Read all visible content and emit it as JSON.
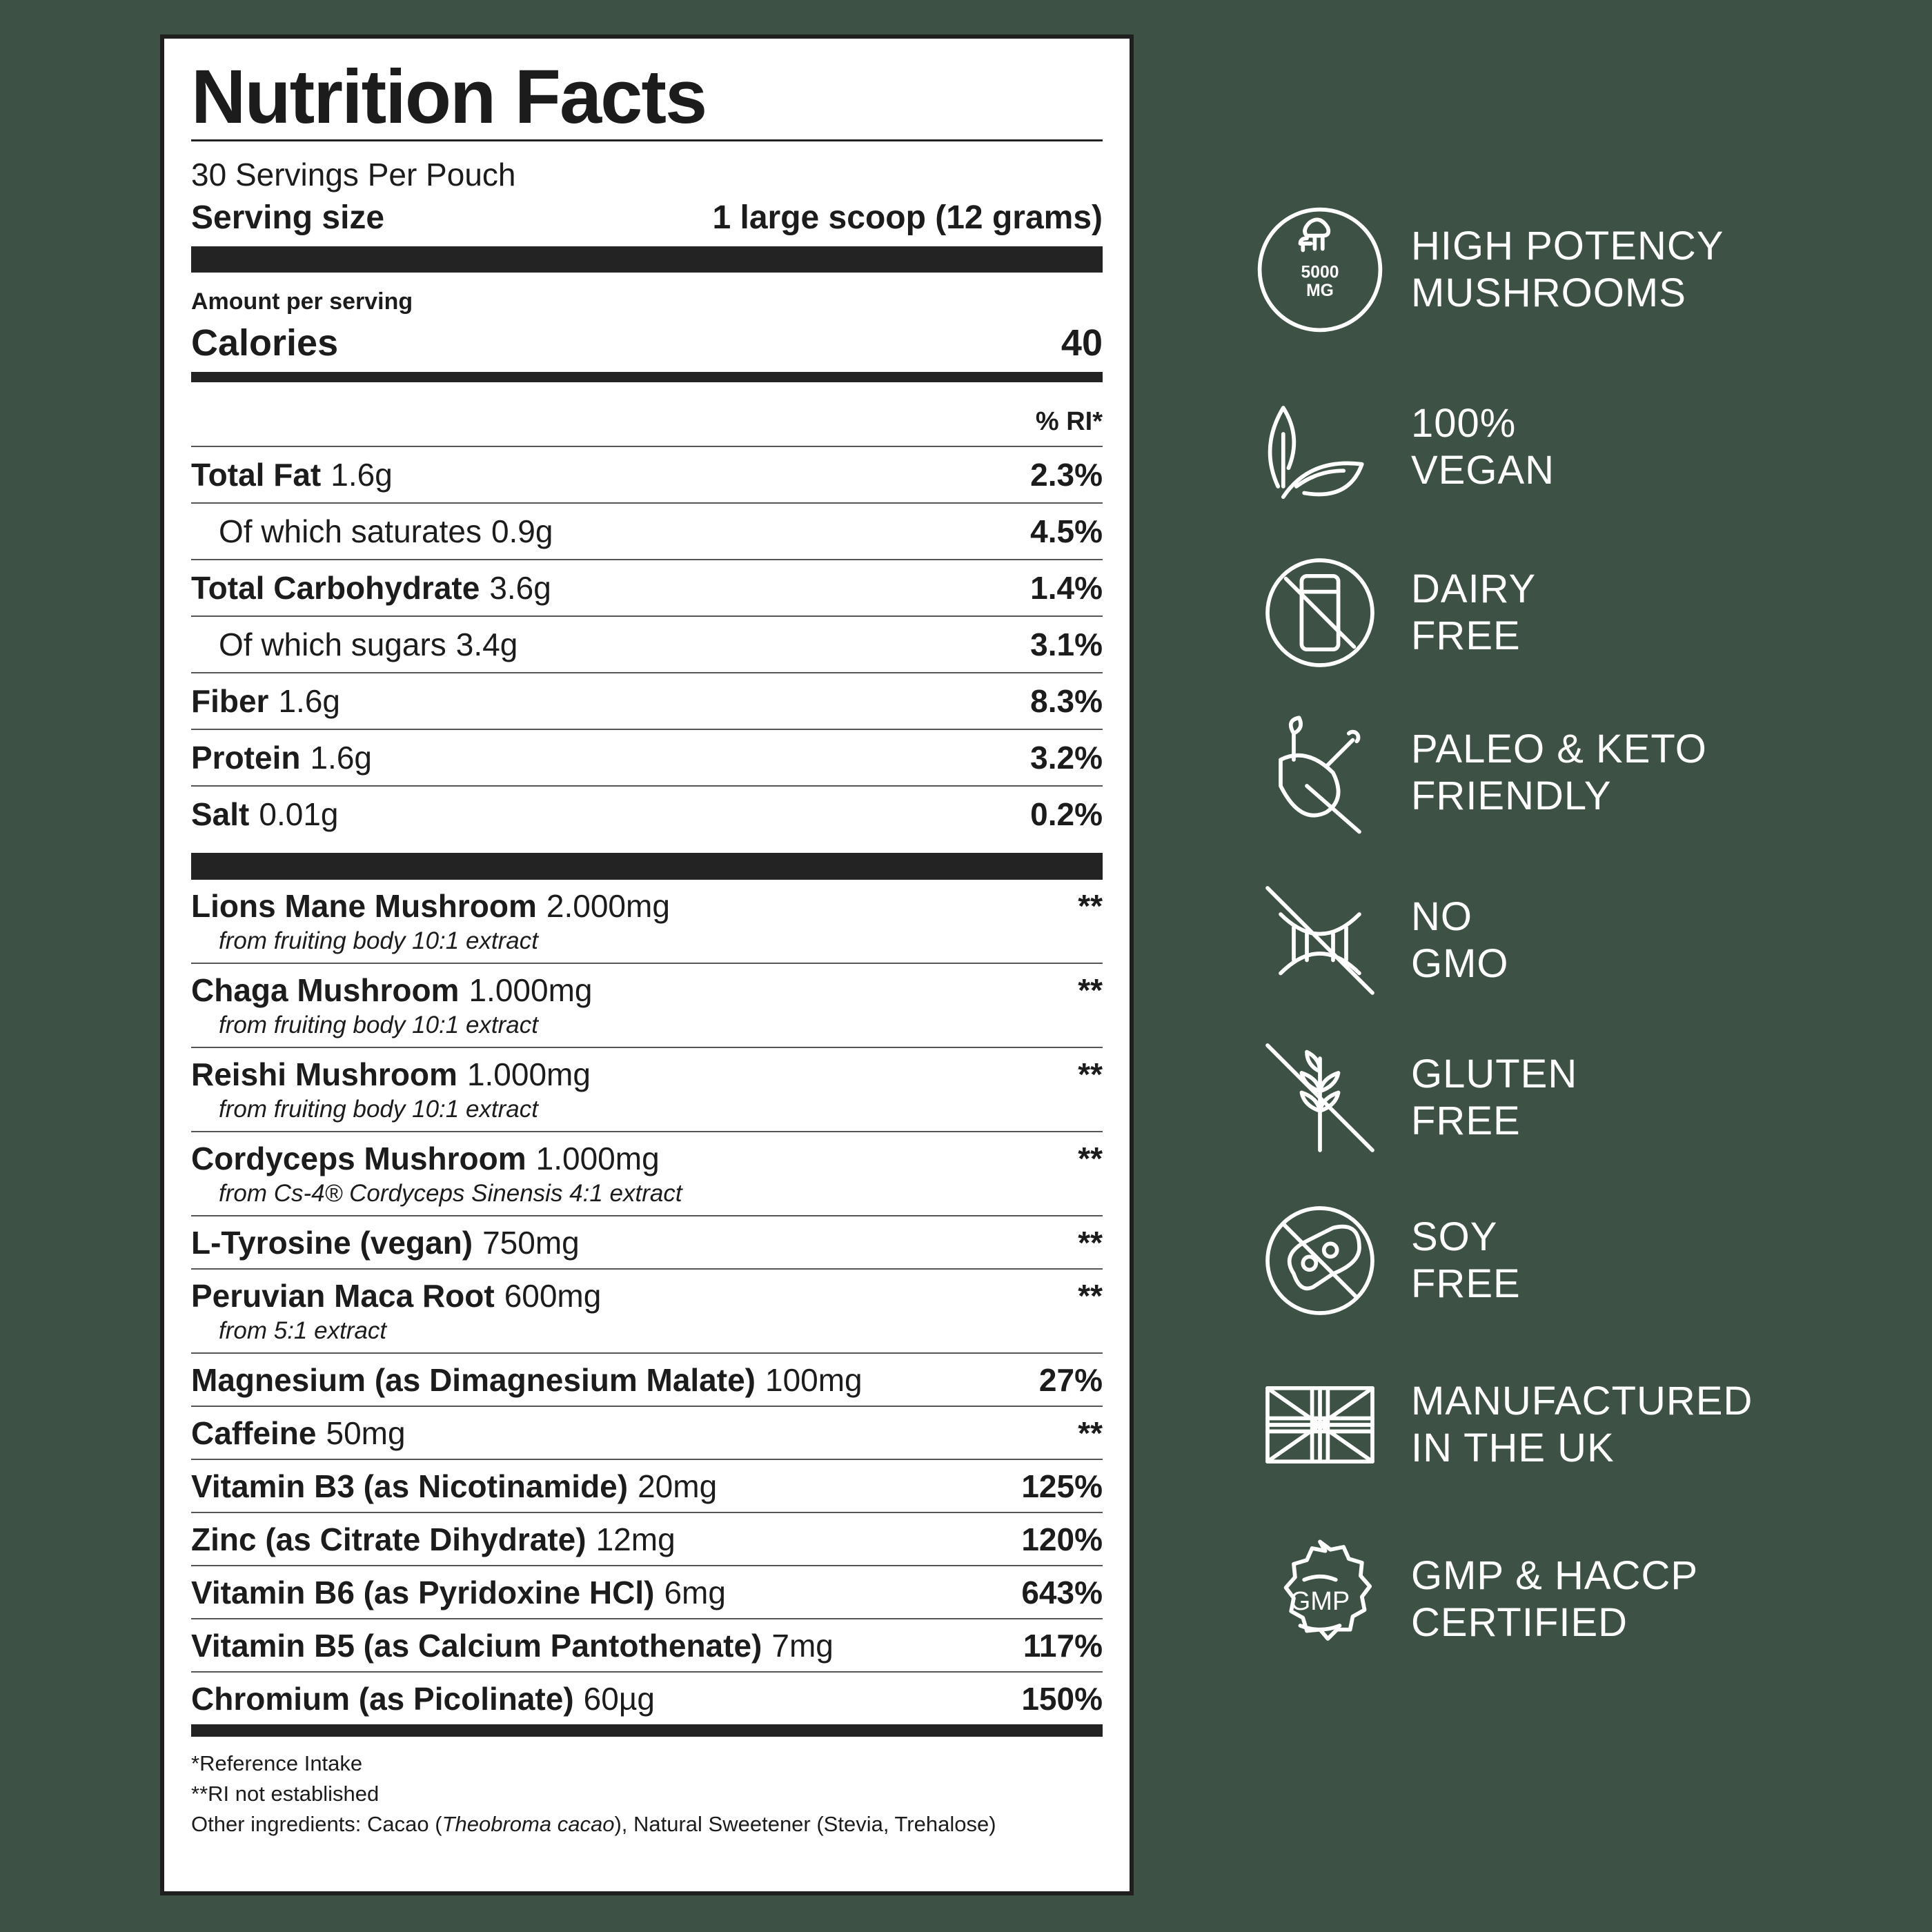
{
  "label": {
    "title": "Nutrition Facts",
    "servings_per_container": "30 Servings Per Pouch",
    "serving_size_label": "Serving size",
    "serving_size_value": "1 large scoop (12 grams)",
    "amount_per_serving": "Amount per serving",
    "calories_label": "Calories",
    "calories_value": "40",
    "ri_header": "% RI*",
    "nutrients": [
      {
        "name": "Total Fat",
        "amount": "1.6g",
        "ri": "2.3%"
      },
      {
        "name": "Of which saturates",
        "amount": "0.9g",
        "ri": "4.5%"
      },
      {
        "name": "Total Carbohydrate",
        "amount": "3.6g",
        "ri": "1.4%"
      },
      {
        "name": "Of which sugars",
        "amount": "3.4g",
        "ri": "3.1%"
      },
      {
        "name": "Fiber",
        "amount": "1.6g",
        "ri": "8.3%"
      },
      {
        "name": "Protein",
        "amount": "1.6g",
        "ri": "3.2%"
      },
      {
        "name": "Salt",
        "amount": "0.01g",
        "ri": "0.2%"
      }
    ],
    "ingredients": [
      {
        "name": "Lions Mane Mushroom",
        "amount": "2.000mg",
        "sub": "from fruiting body 10:1 extract",
        "ri": "**"
      },
      {
        "name": "Chaga Mushroom",
        "amount": "1.000mg",
        "sub": "from fruiting body 10:1 extract",
        "ri": "**"
      },
      {
        "name": "Reishi Mushroom",
        "amount": "1.000mg",
        "sub": "from fruiting body 10:1 extract",
        "ri": "**"
      },
      {
        "name": "Cordyceps Mushroom",
        "amount": "1.000mg",
        "sub": "from Cs-4® Cordyceps Sinensis 4:1 extract",
        "ri": "**"
      },
      {
        "name": "L-Tyrosine (vegan)",
        "amount": "750mg",
        "ri": "**"
      },
      {
        "name": "Peruvian Maca Root",
        "amount": "600mg",
        "sub": "from 5:1 extract",
        "ri": "**"
      },
      {
        "name": "Magnesium (as Dimagnesium Malate)",
        "amount": "100mg",
        "ri": "27%"
      },
      {
        "name": "Caffeine",
        "amount": "50mg",
        "ri": "**"
      },
      {
        "name": "Vitamin B3 (as Nicotinamide)",
        "amount": "20mg",
        "ri": "125%"
      },
      {
        "name": "Zinc (as Citrate Dihydrate)",
        "amount": "12mg",
        "ri": "120%"
      },
      {
        "name": "Vitamin B6 (as Pyridoxine HCl)",
        "amount": "6mg",
        "ri": "643%"
      },
      {
        "name": "Vitamin B5 (as Calcium Pantothenate)",
        "amount": "7mg",
        "ri": "117%"
      },
      {
        "name": "Chromium (as Picolinate)",
        "amount": "60µg",
        "ri": "150%"
      }
    ],
    "footnotes": {
      "ri": "*Reference Intake",
      "not_established": "**RI not established",
      "other_prefix": "Other ingredients: Cacao (",
      "other_italic": "Theobroma cacao",
      "other_suffix": "), Natural Sweetener (Stevia, Trehalose)"
    }
  },
  "claims": [
    {
      "icon": "mushroom-5000mg-icon",
      "badge_line1": "5000",
      "badge_line2": "MG",
      "line1": "HIGH POTENCY",
      "line2": "MUSHROOMS"
    },
    {
      "icon": "leaf-icon",
      "line1": "100%",
      "line2": "VEGAN"
    },
    {
      "icon": "no-milk-icon",
      "line1": "DAIRY",
      "line2": "FREE"
    },
    {
      "icon": "meat-leg-icon",
      "line1": "PALEO & KETO",
      "line2": "FRIENDLY"
    },
    {
      "icon": "no-dna-icon",
      "line1": "NO",
      "line2": "GMO"
    },
    {
      "icon": "no-wheat-icon",
      "line1": "GLUTEN",
      "line2": "FREE"
    },
    {
      "icon": "no-soy-icon",
      "line1": "SOY",
      "line2": "FREE"
    },
    {
      "icon": "uk-flag-icon",
      "line1": "MANUFACTURED",
      "line2": "IN THE UK"
    },
    {
      "icon": "gmp-seal-icon",
      "seal_text": "GMP",
      "line1": "GMP & HACCP",
      "line2": "CERTIFIED"
    }
  ],
  "colors": {
    "background": "#3d5244",
    "panel": "#ffffff",
    "ink": "#1c1c1c"
  }
}
